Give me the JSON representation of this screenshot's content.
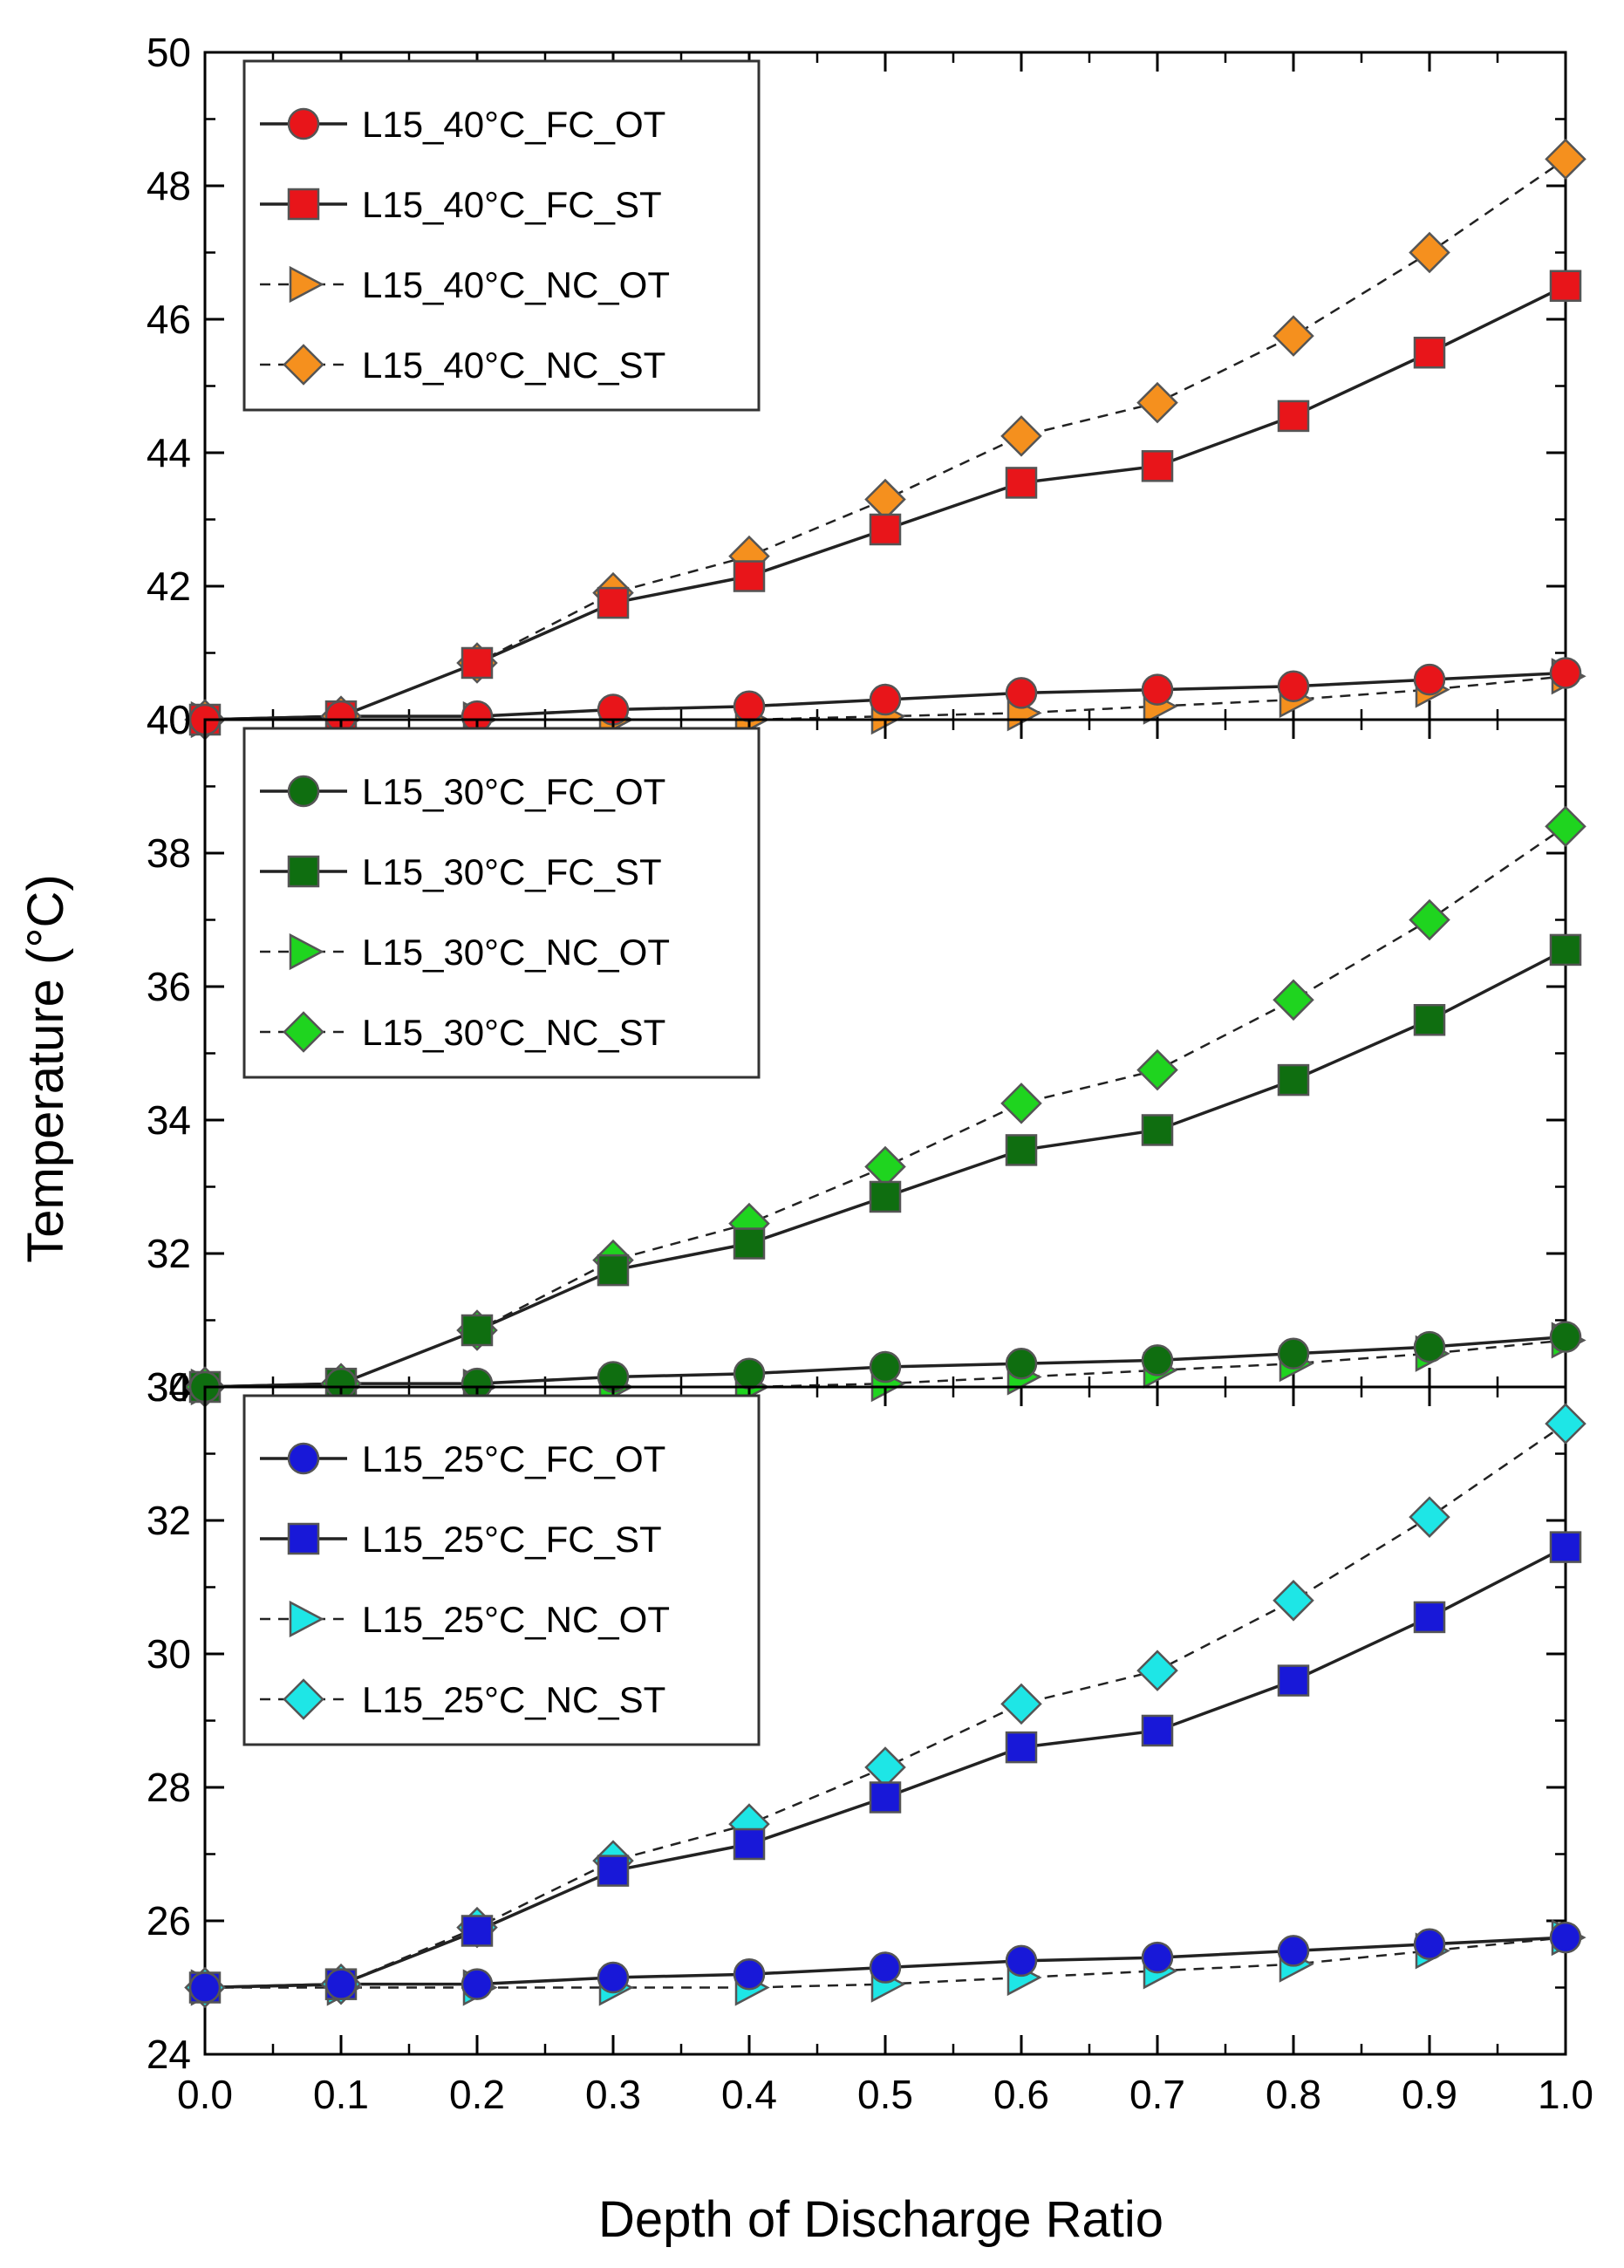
{
  "chart_data": {
    "type": "line",
    "layout": "three vertically stacked panels sharing one x-axis",
    "xlabel": "Depth of Discharge Ratio",
    "ylabel": "Temperature (°C)",
    "x": [
      0.0,
      0.1,
      0.2,
      0.3,
      0.4,
      0.5,
      0.6,
      0.7,
      0.8,
      0.9,
      1.0
    ],
    "x_tick_labels": [
      "0.0",
      "0.1",
      "0.2",
      "0.3",
      "0.4",
      "0.5",
      "0.6",
      "0.7",
      "0.8",
      "0.9",
      "1.0"
    ],
    "xlim": [
      0,
      1
    ],
    "legend_position": "top-left",
    "panels": [
      {
        "ylim": [
          40,
          50
        ],
        "y_tick_labels": [
          "40",
          "42",
          "44",
          "46",
          "48",
          "50"
        ],
        "series": [
          {
            "name": "L15_40°C_FC_OT",
            "marker": "circle",
            "line": "solid",
            "color": "#e8151a",
            "values": [
              40.0,
              40.05,
              40.05,
              40.15,
              40.2,
              40.3,
              40.4,
              40.45,
              40.5,
              40.6,
              40.7
            ]
          },
          {
            "name": "L15_40°C_FC_ST",
            "marker": "square",
            "line": "solid",
            "color": "#e8151a",
            "values": [
              40.0,
              40.05,
              40.85,
              41.75,
              42.15,
              42.85,
              43.55,
              43.8,
              44.55,
              45.5,
              46.5
            ]
          },
          {
            "name": "L15_40°C_NC_OT",
            "marker": "triangle-right",
            "line": "dashed",
            "color": "#f5901e",
            "values": [
              40.0,
              40.0,
              40.0,
              40.0,
              40.0,
              40.05,
              40.1,
              40.2,
              40.3,
              40.45,
              40.65
            ]
          },
          {
            "name": "L15_40°C_NC_ST",
            "marker": "diamond",
            "line": "dashed",
            "color": "#f5901e",
            "values": [
              40.0,
              40.05,
              40.85,
              41.9,
              42.45,
              43.3,
              44.25,
              44.75,
              45.75,
              47.0,
              48.4
            ]
          }
        ]
      },
      {
        "ylim": [
          30,
          40
        ],
        "y_tick_labels": [
          "30",
          "32",
          "34",
          "36",
          "38",
          "40"
        ],
        "series": [
          {
            "name": "L15_30°C_FC_OT",
            "marker": "circle",
            "line": "solid",
            "color": "#0f6e10",
            "values": [
              30.0,
              30.05,
              30.05,
              30.15,
              30.2,
              30.3,
              30.35,
              30.4,
              30.5,
              30.6,
              30.75
            ]
          },
          {
            "name": "L15_30°C_FC_ST",
            "marker": "square",
            "line": "solid",
            "color": "#0f6e10",
            "values": [
              30.0,
              30.05,
              30.85,
              31.75,
              32.15,
              32.85,
              33.55,
              33.85,
              34.6,
              35.5,
              36.55
            ]
          },
          {
            "name": "L15_30°C_NC_OT",
            "marker": "triangle-right",
            "line": "dashed",
            "color": "#1fd41f",
            "values": [
              30.0,
              30.0,
              30.0,
              30.0,
              30.0,
              30.05,
              30.15,
              30.25,
              30.35,
              30.5,
              30.7
            ]
          },
          {
            "name": "L15_30°C_NC_ST",
            "marker": "diamond",
            "line": "dashed",
            "color": "#1fd41f",
            "values": [
              30.0,
              30.05,
              30.85,
              31.9,
              32.45,
              33.3,
              34.25,
              34.75,
              35.8,
              37.0,
              38.4
            ]
          }
        ]
      },
      {
        "ylim": [
          24,
          34
        ],
        "y_tick_labels": [
          "24",
          "26",
          "28",
          "30",
          "32",
          "34"
        ],
        "series": [
          {
            "name": "L15_25°C_FC_OT",
            "marker": "circle",
            "line": "solid",
            "color": "#1818d8",
            "values": [
              25.0,
              25.05,
              25.05,
              25.15,
              25.2,
              25.3,
              25.4,
              25.45,
              25.55,
              25.65,
              25.75
            ]
          },
          {
            "name": "L15_25°C_FC_ST",
            "marker": "square",
            "line": "solid",
            "color": "#1818d8",
            "values": [
              25.0,
              25.05,
              25.85,
              26.75,
              27.15,
              27.85,
              28.6,
              28.85,
              29.6,
              30.55,
              31.6
            ]
          },
          {
            "name": "L15_25°C_NC_OT",
            "marker": "triangle-right",
            "line": "dashed",
            "color": "#1ee6e6",
            "values": [
              25.0,
              25.0,
              25.0,
              25.0,
              25.0,
              25.05,
              25.15,
              25.25,
              25.35,
              25.55,
              25.75
            ]
          },
          {
            "name": "L15_25°C_NC_ST",
            "marker": "diamond",
            "line": "dashed",
            "color": "#1ee6e6",
            "values": [
              25.0,
              25.05,
              25.9,
              26.9,
              27.45,
              28.3,
              29.25,
              29.75,
              30.8,
              32.05,
              33.45
            ]
          }
        ]
      }
    ]
  }
}
